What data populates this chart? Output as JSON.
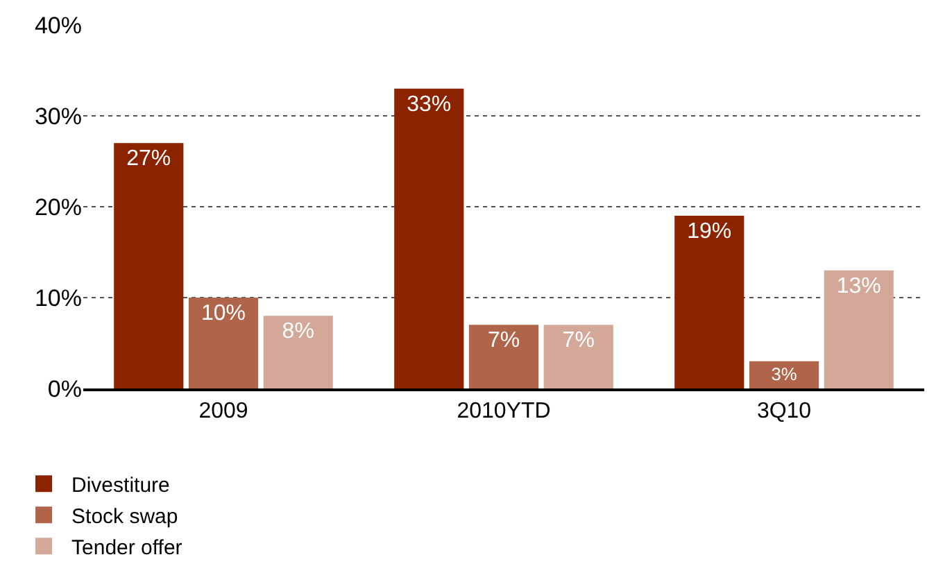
{
  "chart_data": {
    "type": "bar",
    "categories": [
      "2009",
      "2010YTD",
      "3Q10"
    ],
    "series": [
      {
        "name": "Divestiture",
        "color": "#8b2300",
        "values": [
          27,
          33,
          19
        ],
        "value_labels": [
          "27%",
          "33%",
          "19%"
        ]
      },
      {
        "name": "Stock swap",
        "color": "#b0644a",
        "values": [
          10,
          7,
          3
        ],
        "value_labels": [
          "10%",
          "7%",
          "3%"
        ]
      },
      {
        "name": "Tender offer",
        "color": "#d4a898",
        "values": [
          8,
          7,
          13
        ],
        "value_labels": [
          "8%",
          "7%",
          "13%"
        ]
      }
    ],
    "ylim": [
      0,
      40
    ],
    "yticks": [
      {
        "value": 0,
        "label": "0%"
      },
      {
        "value": 10,
        "label": "10%"
      },
      {
        "value": 20,
        "label": "20%"
      },
      {
        "value": 30,
        "label": "30%"
      },
      {
        "value": 40,
        "label": "40%"
      }
    ],
    "grid": "y",
    "legend": "bottom left"
  }
}
